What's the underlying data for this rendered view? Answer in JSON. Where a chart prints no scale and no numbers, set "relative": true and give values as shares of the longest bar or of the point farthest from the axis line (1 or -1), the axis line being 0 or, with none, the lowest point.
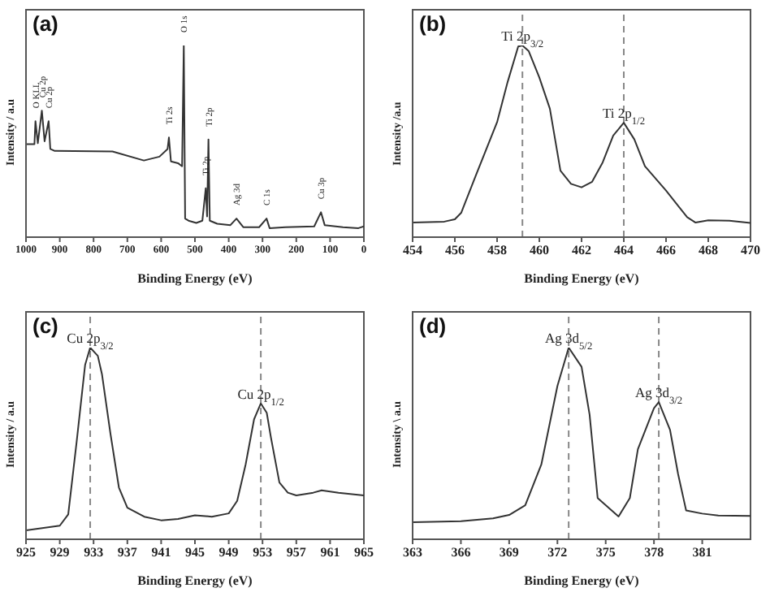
{
  "chart_data": [
    {
      "type": "line",
      "title": "(a)",
      "xlabel": "Binding Energy (eV)",
      "ylabel": "Intensity / a.u",
      "relative": true,
      "xlim": [
        1000,
        0
      ],
      "xticks": [
        1000,
        900,
        800,
        700,
        600,
        500,
        400,
        300,
        200,
        100,
        0
      ],
      "x": [
        1000,
        975,
        972,
        965,
        953,
        945,
        933,
        928,
        915,
        744,
        651,
        605,
        581,
        577,
        571,
        550,
        538,
        533,
        529,
        519,
        496,
        478,
        468,
        464,
        460,
        456,
        434,
        395,
        377,
        357,
        310,
        288,
        279,
        233,
        147,
        127,
        116,
        62,
        16,
        0
      ],
      "series": [
        {
          "color": "#333333",
          "values": [
            0.485,
            0.485,
            0.605,
            0.49,
            0.66,
            0.5,
            0.605,
            0.46,
            0.45,
            0.447,
            0.4,
            0.42,
            0.46,
            0.52,
            0.395,
            0.386,
            0.37,
            1.0,
            0.097,
            0.086,
            0.074,
            0.086,
            0.255,
            0.108,
            0.51,
            0.086,
            0.07,
            0.063,
            0.097,
            0.052,
            0.052,
            0.097,
            0.047,
            0.052,
            0.056,
            0.13,
            0.063,
            0.052,
            0.047,
            0.056
          ]
        }
      ],
      "annotations": [
        {
          "text": "O KLL",
          "x": 972,
          "y": 0.605
        },
        {
          "text": "Cu 2p",
          "x": 953,
          "y": 0.66
        },
        {
          "text": "Cu 2p",
          "x": 933,
          "y": 0.605
        },
        {
          "text": "Ti 2s",
          "x": 577,
          "y": 0.52
        },
        {
          "text": "O 1s",
          "x": 533,
          "y": 1.0
        },
        {
          "text": "Ti 2p",
          "x": 468,
          "y": 0.255
        },
        {
          "text": "Ti 2p",
          "x": 460,
          "y": 0.51
        },
        {
          "text": "Ag 3d",
          "x": 377,
          "y": 0.097
        },
        {
          "text": "C 1s",
          "x": 288,
          "y": 0.097
        },
        {
          "text": "Cu 3p",
          "x": 127,
          "y": 0.13
        }
      ]
    },
    {
      "type": "line",
      "title": "(b)",
      "xlabel": "Binding Energy (eV)",
      "ylabel": "Intensity /a.u",
      "relative": true,
      "xlim": [
        454,
        470
      ],
      "xticks": [
        454,
        456,
        458,
        460,
        462,
        464,
        466,
        468,
        470
      ],
      "x": [
        454,
        455.5,
        456,
        456.3,
        457,
        458,
        458.5,
        459,
        459.2,
        459.5,
        460,
        460.5,
        461,
        461.5,
        462,
        462.5,
        463,
        463.5,
        464,
        464.5,
        465,
        466,
        467,
        467.4,
        468,
        469,
        470
      ],
      "series": [
        {
          "color": "#333333",
          "values": [
            0.076,
            0.081,
            0.093,
            0.127,
            0.324,
            0.6,
            0.81,
            0.995,
            1.0,
            0.97,
            0.833,
            0.67,
            0.347,
            0.278,
            0.26,
            0.289,
            0.39,
            0.53,
            0.597,
            0.51,
            0.37,
            0.243,
            0.104,
            0.076,
            0.088,
            0.086,
            0.074
          ]
        }
      ],
      "ref_lines": [
        {
          "axis": "x",
          "value": 459.2,
          "color": "#888888",
          "line_style": "dashed"
        },
        {
          "axis": "x",
          "value": 464,
          "color": "#888888",
          "line_style": "dashed"
        }
      ],
      "annotations": [
        {
          "text": "Ti 2p$_{3/2}$",
          "x": 459.2,
          "y": 1.0
        },
        {
          "text": "Ti 2p$_{1/2}$",
          "x": 464,
          "y": 0.597
        }
      ]
    },
    {
      "type": "line",
      "title": "(c)",
      "xlabel": "Binding Energy (eV)",
      "ylabel": "Intensity / a.u",
      "relative": true,
      "xlim": [
        925,
        965
      ],
      "xticks": [
        925,
        929,
        933,
        937,
        941,
        945,
        949,
        953,
        957,
        961,
        965
      ],
      "x": [
        925,
        929,
        930,
        931,
        932,
        932.6,
        933.5,
        934,
        935,
        936,
        937,
        939,
        941,
        943,
        945,
        947,
        949,
        950,
        951,
        952,
        952.8,
        953.5,
        954,
        955,
        956,
        957,
        959,
        960,
        962,
        965
      ],
      "series": [
        {
          "color": "#333333",
          "values": [
            0.047,
            0.071,
            0.13,
            0.51,
            0.91,
            1.0,
            0.957,
            0.86,
            0.55,
            0.27,
            0.165,
            0.118,
            0.099,
            0.106,
            0.125,
            0.118,
            0.135,
            0.2,
            0.39,
            0.626,
            0.709,
            0.66,
            0.53,
            0.296,
            0.243,
            0.229,
            0.243,
            0.255,
            0.243,
            0.229
          ]
        }
      ],
      "ref_lines": [
        {
          "axis": "x",
          "value": 932.6,
          "color": "#888888",
          "line_style": "dashed"
        },
        {
          "axis": "x",
          "value": 952.8,
          "color": "#888888",
          "line_style": "dashed"
        }
      ],
      "annotations": [
        {
          "text": "Cu 2p$_{3/2}$",
          "x": 932.6,
          "y": 1.0
        },
        {
          "text": "Cu 2p$_{1/2}$",
          "x": 952.8,
          "y": 0.709
        }
      ]
    },
    {
      "type": "line",
      "title": "(d)",
      "xlabel": "Binding Energy (eV)",
      "ylabel": "Intensity \\ a.u",
      "relative": true,
      "xlim": [
        363,
        384
      ],
      "xticks": [
        363,
        366,
        369,
        372,
        375,
        378,
        381
      ],
      "x": [
        363,
        366,
        368,
        369,
        370,
        371,
        372,
        372.7,
        373.5,
        374,
        374.5,
        375.8,
        376.5,
        377,
        378,
        378.3,
        379,
        379.5,
        380,
        381,
        382,
        384
      ],
      "series": [
        {
          "color": "#333333",
          "values": [
            0.089,
            0.094,
            0.109,
            0.127,
            0.177,
            0.39,
            0.8,
            1.0,
            0.9,
            0.65,
            0.215,
            0.119,
            0.215,
            0.47,
            0.684,
            0.716,
            0.57,
            0.34,
            0.15,
            0.134,
            0.124,
            0.122
          ]
        }
      ],
      "ref_lines": [
        {
          "axis": "x",
          "value": 372.7,
          "color": "#888888",
          "line_style": "dashed"
        },
        {
          "axis": "x",
          "value": 378.3,
          "color": "#888888",
          "line_style": "dashed"
        }
      ],
      "annotations": [
        {
          "text": "Ag 3d$_{5/2}$",
          "x": 372.7,
          "y": 1.0
        },
        {
          "text": "Ag 3d$_{3/2}$",
          "x": 378.3,
          "y": 0.716
        }
      ]
    }
  ]
}
